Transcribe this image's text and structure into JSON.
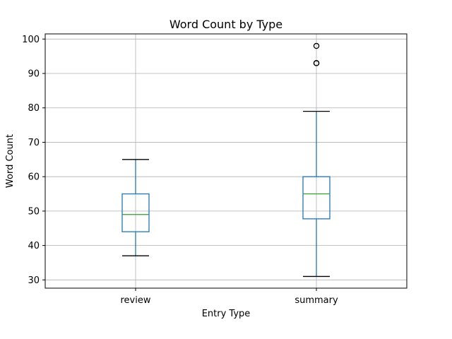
{
  "chart_data": {
    "type": "box",
    "title": "Word Count by Type",
    "xlabel": "Entry Type",
    "ylabel": "Word Count",
    "ylim": [
      27.6,
      101.5
    ],
    "yticks": [
      30,
      40,
      50,
      60,
      70,
      80,
      90,
      100
    ],
    "grid": true,
    "categories": [
      "review",
      "summary"
    ],
    "boxes": [
      {
        "category": "review",
        "whislo": 37,
        "q1": 44,
        "med": 49,
        "q3": 55,
        "whishi": 65,
        "fliers": []
      },
      {
        "category": "summary",
        "whislo": 31,
        "q1": 47.75,
        "med": 55,
        "q3": 60,
        "whishi": 79,
        "fliers": [
          93,
          93,
          98
        ]
      }
    ],
    "colors": {
      "box": "#1f77b4",
      "median": "#2ca02c",
      "grid": "#b0b0b0"
    }
  }
}
